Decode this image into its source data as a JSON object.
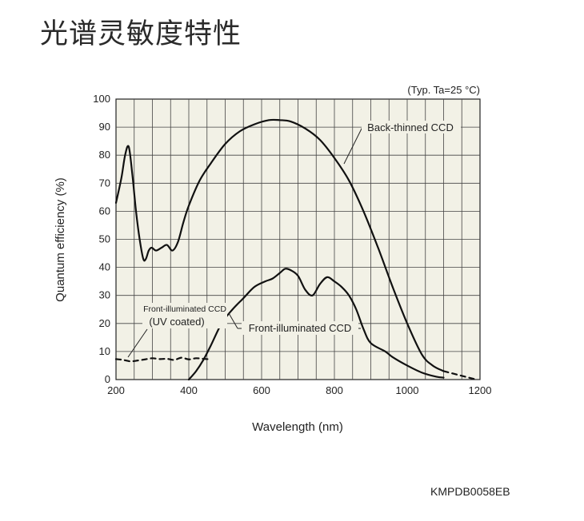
{
  "header": {
    "title": "光谱灵敏度特性"
  },
  "footer": {
    "code": "KMPDB0058EB"
  },
  "chart_data": {
    "type": "line",
    "condition_note": "(Typ. Ta=25 °C)",
    "xlabel": "Wavelength (nm)",
    "ylabel": "Quantum efficiency (%)",
    "xlim": [
      200,
      1200
    ],
    "ylim": [
      0,
      100
    ],
    "xticks": [
      200,
      400,
      600,
      800,
      1000,
      1200
    ],
    "yticks": [
      0,
      10,
      20,
      30,
      40,
      50,
      60,
      70,
      80,
      90,
      100
    ],
    "grid": true,
    "series": [
      {
        "name": "Back-thinned CCD",
        "style": "solid",
        "x": [
          200,
          215,
          225,
          235,
          245,
          255,
          265,
          275,
          282,
          290,
          298,
          310,
          325,
          340,
          355,
          370,
          385,
          400,
          430,
          460,
          500,
          540,
          580,
          620,
          650,
          680,
          720,
          760,
          800,
          840,
          880,
          920,
          960,
          1000,
          1040,
          1070,
          1100
        ],
        "y": [
          63,
          72,
          80,
          83,
          73,
          60,
          50,
          43,
          43,
          46,
          47,
          46,
          47,
          48,
          46,
          49,
          56,
          62,
          71,
          77,
          84,
          88.5,
          91,
          92.5,
          92.5,
          92,
          89.5,
          85.5,
          79,
          71,
          60,
          47,
          33,
          20,
          9,
          5,
          3
        ]
      },
      {
        "name": "Front-illuminated CCD",
        "style": "solid",
        "x": [
          400,
          420,
          440,
          460,
          490,
          520,
          550,
          580,
          610,
          630,
          650,
          665,
          680,
          700,
          720,
          740,
          760,
          780,
          800,
          820,
          840,
          860,
          880,
          900,
          940,
          960,
          1000,
          1040,
          1080,
          1100
        ],
        "y": [
          0,
          3,
          7,
          12,
          20,
          25,
          29,
          33,
          35,
          36,
          38,
          39.5,
          39,
          37,
          32,
          30,
          34,
          36.5,
          35,
          33,
          30,
          25,
          18,
          13,
          10,
          8,
          5,
          2.5,
          1,
          0.7
        ]
      },
      {
        "name": "Front-illuminated CCD (UV coated)",
        "style": "dashed",
        "x": [
          200,
          220,
          240,
          260,
          280,
          300,
          320,
          340,
          360,
          380,
          400,
          420,
          440,
          460
        ],
        "y": [
          7.3,
          7.0,
          6.5,
          6.8,
          7.2,
          7.6,
          7.3,
          7.4,
          7.0,
          7.8,
          7.2,
          7.6,
          7.4,
          7.2
        ]
      },
      {
        "name": "Back-thinned CCD extension",
        "style": "dashed",
        "x": [
          1100,
          1130,
          1160,
          1190
        ],
        "y": [
          3,
          2,
          1,
          0
        ]
      }
    ],
    "annotations": [
      {
        "text": "Back-thinned CCD"
      },
      {
        "text": "Front-illuminated CCD"
      },
      {
        "text": "Front-illuminated CCD"
      },
      {
        "text": "(UV coated)"
      }
    ]
  }
}
